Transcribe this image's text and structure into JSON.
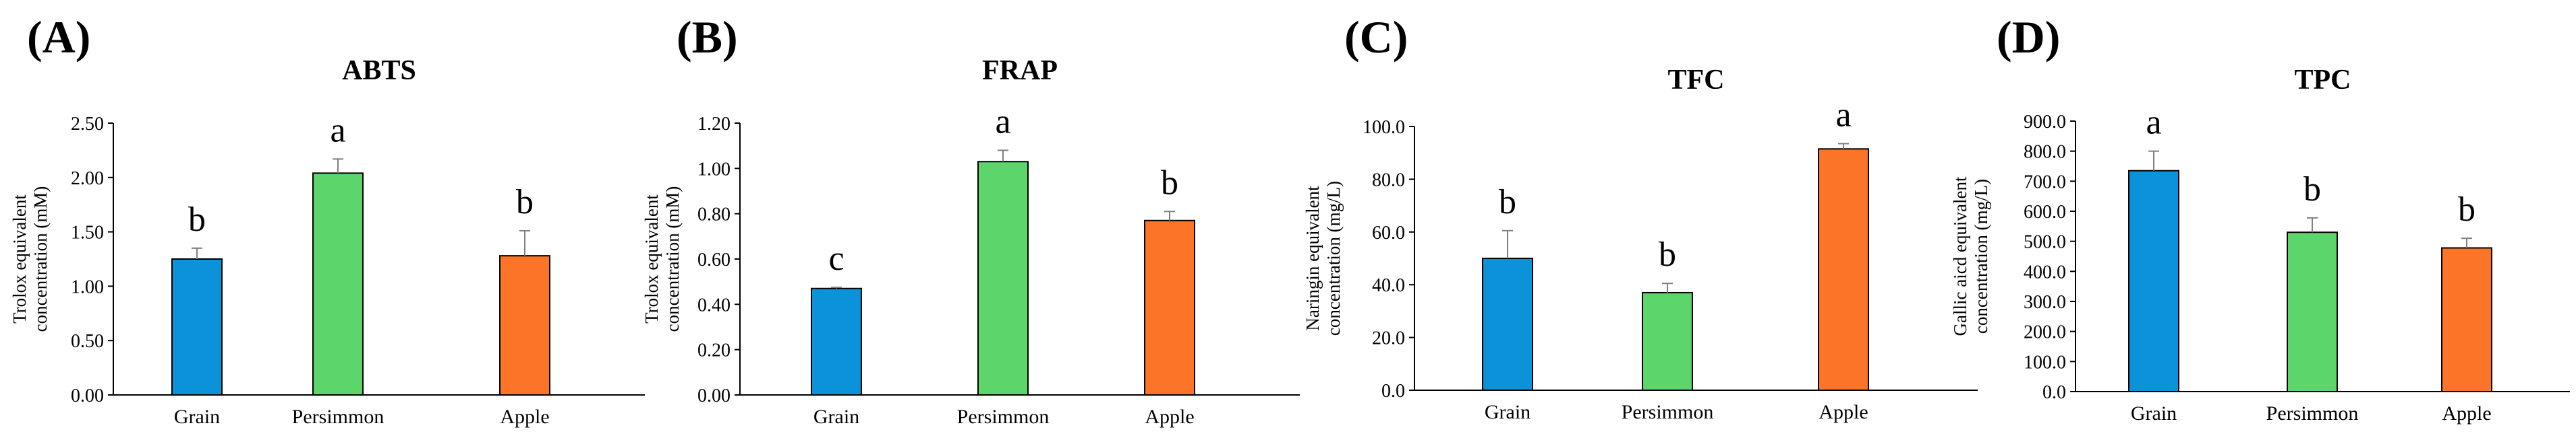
{
  "figure": {
    "bar_colors": [
      "#0b92d8",
      "#5cd66a",
      "#fb7427"
    ],
    "axis_color": "#000000",
    "error_bar_color": "#7f7f7f"
  },
  "chart_data": [
    {
      "panel_label": "(A)",
      "type": "bar",
      "title": "ABTS",
      "ylabel_lines": [
        "Trolox equivalent",
        "concentration (mM)"
      ],
      "xlabel": "",
      "categories": [
        "Grain",
        "Persimmon",
        "Apple"
      ],
      "values": [
        1.25,
        2.04,
        1.28
      ],
      "errors": [
        0.1,
        0.13,
        0.23
      ],
      "letters": [
        "b",
        "a",
        "b"
      ],
      "ylim": [
        0,
        2.5
      ],
      "yticks": [
        0,
        0.5,
        1.0,
        1.5,
        2.0,
        2.5
      ],
      "ytick_labels": [
        "0.00",
        "0.50",
        "1.00",
        "1.50",
        "2.00",
        "2.50"
      ],
      "grid": false
    },
    {
      "panel_label": "(B)",
      "type": "bar",
      "title": "FRAP",
      "ylabel_lines": [
        "Trolox equivalent",
        "concentration (mM)"
      ],
      "xlabel": "",
      "categories": [
        "Grain",
        "Persimmon",
        "Apple"
      ],
      "values": [
        0.47,
        1.03,
        0.77
      ],
      "errors": [
        0.005,
        0.05,
        0.04
      ],
      "letters": [
        "c",
        "a",
        "b"
      ],
      "ylim": [
        0,
        1.2
      ],
      "yticks": [
        0,
        0.2,
        0.4,
        0.6,
        0.8,
        1.0,
        1.2
      ],
      "ytick_labels": [
        "0.00",
        "0.20",
        "0.40",
        "0.60",
        "0.80",
        "1.00",
        "1.20"
      ],
      "grid": false
    },
    {
      "panel_label": "(C)",
      "type": "bar",
      "title": "TFC",
      "ylabel_lines": [
        "Naringin equivalent",
        "concentration (mg/L)"
      ],
      "xlabel": "",
      "categories": [
        "Grain",
        "Persimmon",
        "Apple"
      ],
      "values": [
        50.0,
        37.0,
        91.5
      ],
      "errors": [
        10.5,
        3.5,
        2.0
      ],
      "letters": [
        "b",
        "b",
        "a"
      ],
      "ylim": [
        0,
        100
      ],
      "yticks": [
        0,
        20,
        40,
        60,
        80,
        100
      ],
      "ytick_labels": [
        "0.0",
        "20.0",
        "40.0",
        "60.0",
        "80.0",
        "100.0"
      ],
      "grid": false
    },
    {
      "panel_label": "(D)",
      "type": "bar",
      "title": "TPC",
      "ylabel_lines": [
        "Gallic aicd equivalent",
        "concentration (mg/L)"
      ],
      "xlabel": "",
      "categories": [
        "Grain",
        "Persimmon",
        "Apple"
      ],
      "values": [
        735,
        530,
        478
      ],
      "errors": [
        65,
        48,
        32
      ],
      "letters": [
        "a",
        "b",
        "b"
      ],
      "ylim": [
        0,
        900
      ],
      "yticks": [
        0,
        100,
        200,
        300,
        400,
        500,
        600,
        700,
        800,
        900
      ],
      "ytick_labels": [
        "0.0",
        "100.0",
        "200.0",
        "300.0",
        "400.0",
        "500.0",
        "600.0",
        "700.0",
        "800.0",
        "900.0"
      ],
      "grid": false
    }
  ]
}
